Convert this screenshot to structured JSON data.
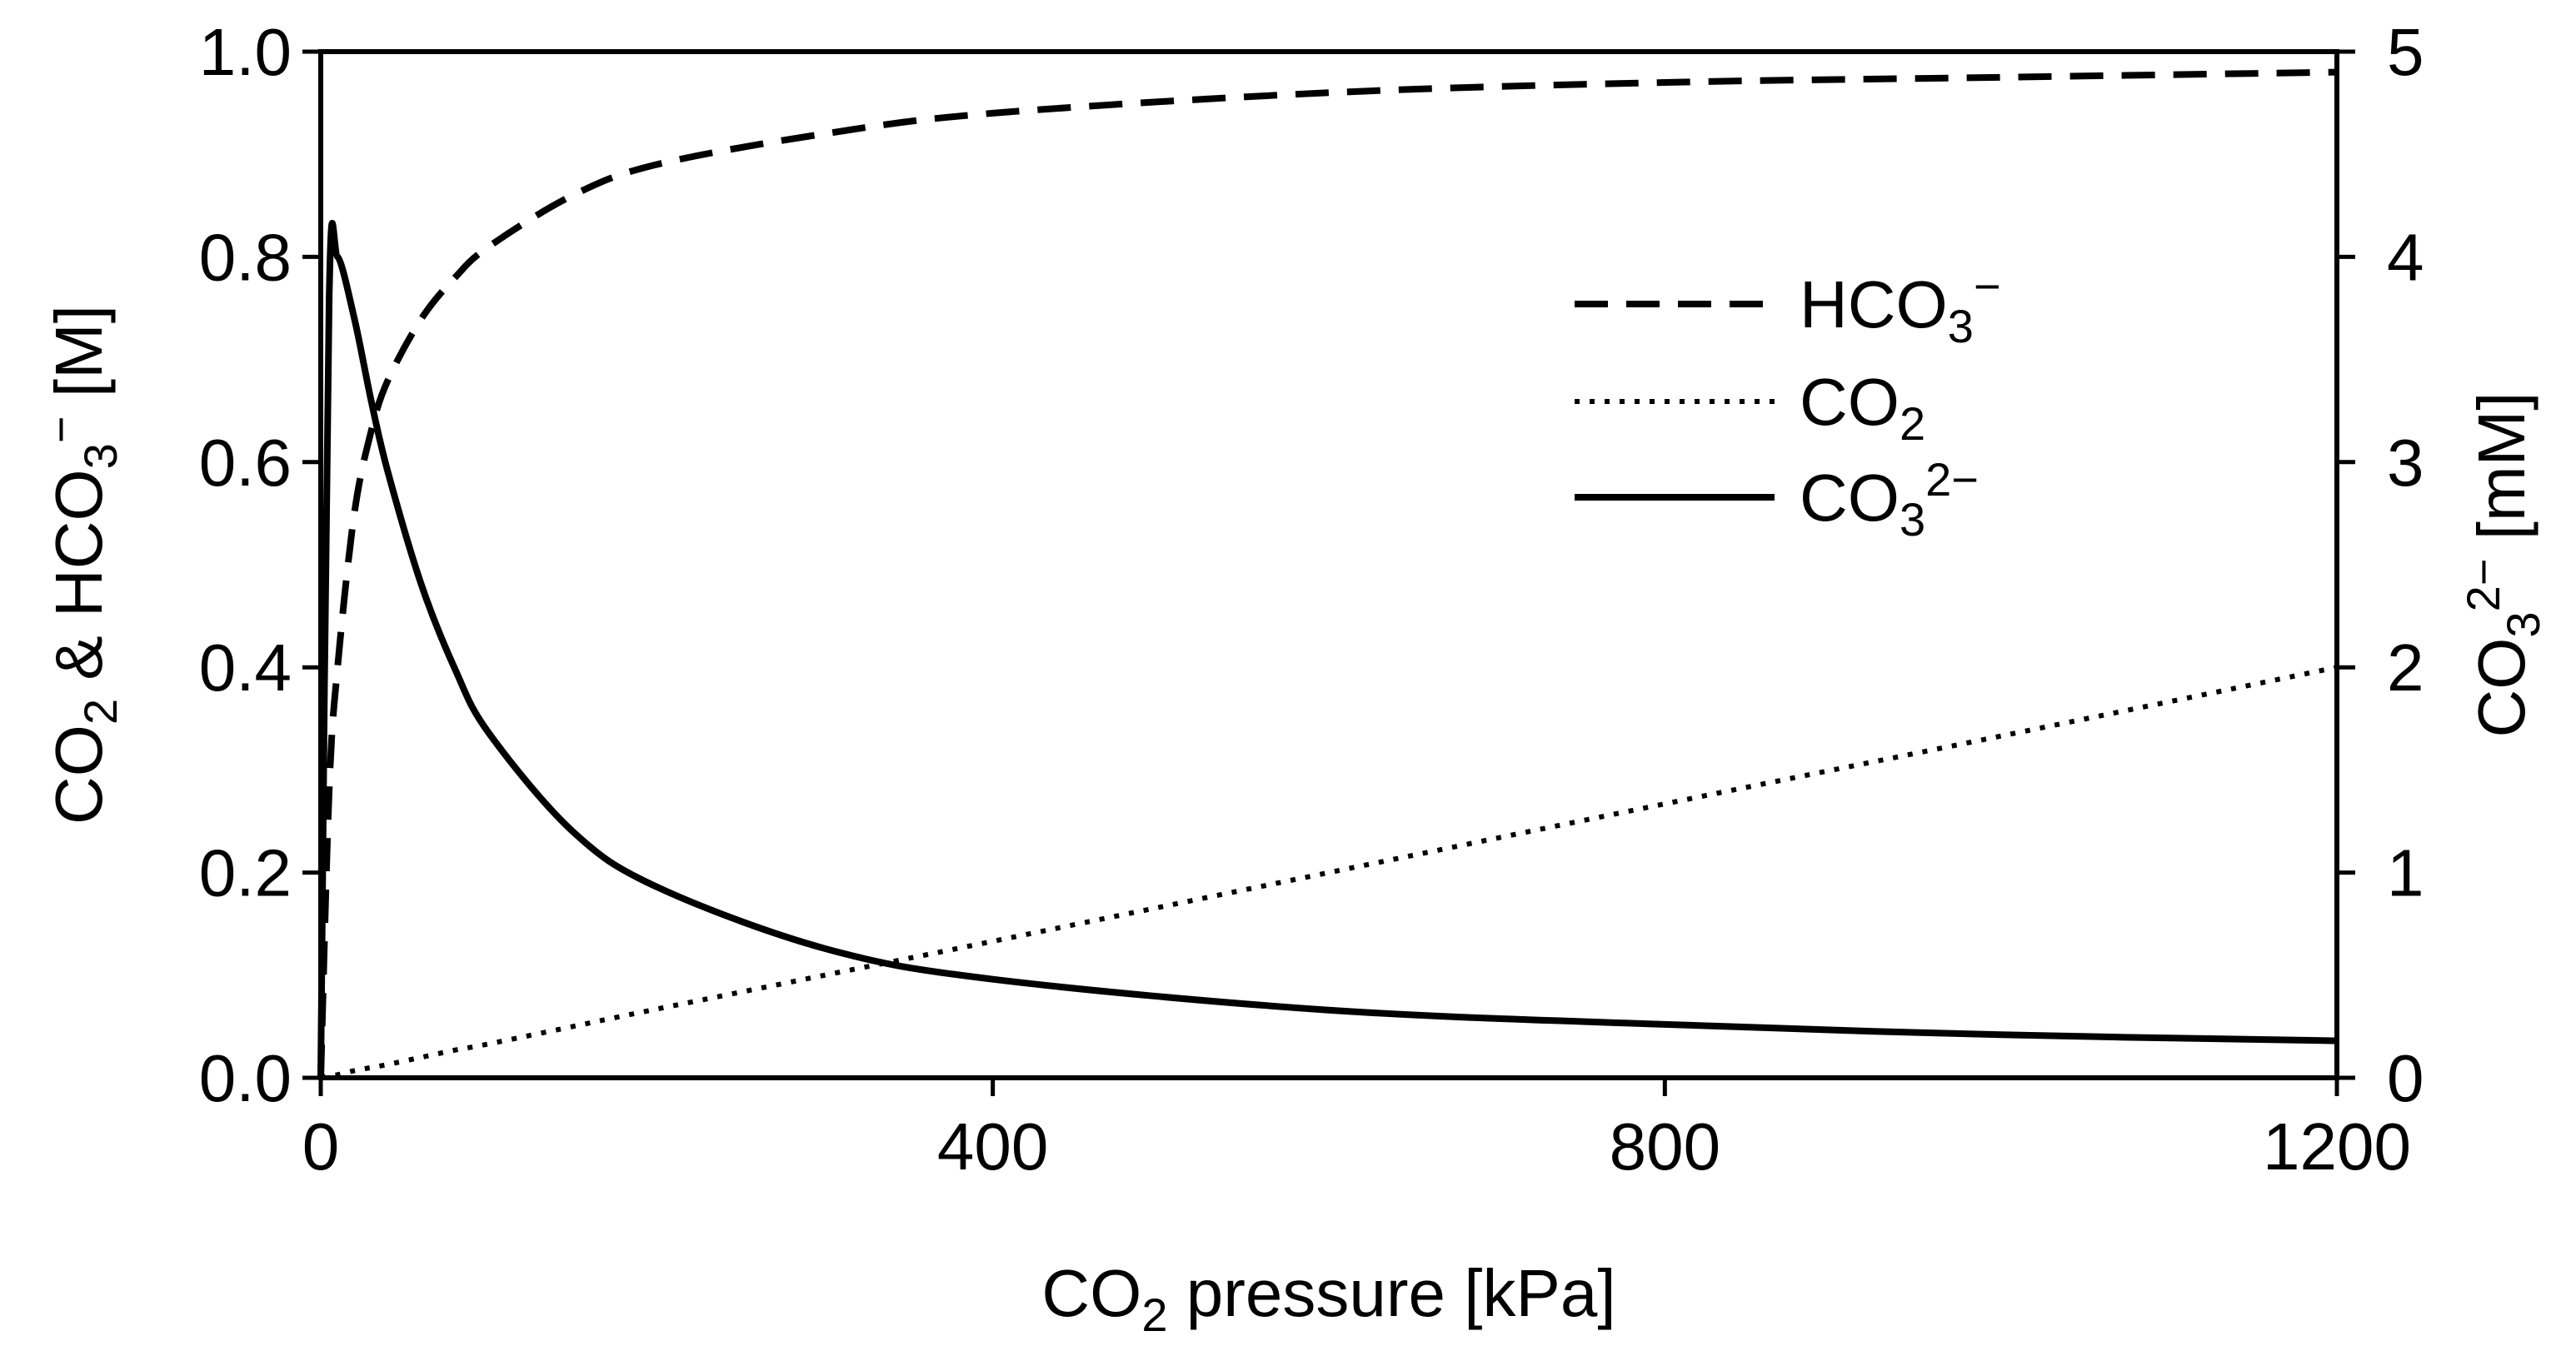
{
  "chart_data": {
    "type": "line",
    "x": [
      0,
      5,
      10,
      20,
      30,
      40,
      60,
      80,
      100,
      150,
      200,
      300,
      400,
      600,
      800,
      1000,
      1200
    ],
    "xlabel": {
      "main": "CO",
      "sub": "2",
      "rest": " pressure [kPa]"
    },
    "ylabel_left": {
      "p1": "CO",
      "sub1": "2",
      "p2": " & HCO",
      "sub2": "3",
      "sup2": "−",
      "p3": " [M]"
    },
    "ylabel_right": {
      "p1": "CO",
      "sub1": "3",
      "sup1": "2−",
      "p2": " [mM]"
    },
    "xlim": [
      0,
      1200
    ],
    "ylim_left": [
      0,
      1.0
    ],
    "ylim_right": [
      0,
      5
    ],
    "x_ticks": [
      "0",
      "400",
      "800",
      "1200"
    ],
    "y_left_ticks": [
      "0.0",
      "0.2",
      "0.4",
      "0.6",
      "0.8",
      "1.0"
    ],
    "y_right_ticks": [
      "0",
      "1",
      "2",
      "3",
      "4",
      "5"
    ],
    "series": [
      {
        "name": "HCO3−",
        "legend": {
          "main": "HCO",
          "sub": "3",
          "sup": "−"
        },
        "axis": "left",
        "style": "dashed",
        "values": [
          0.0,
          0.28,
          0.4,
          0.55,
          0.63,
          0.68,
          0.74,
          0.78,
          0.81,
          0.86,
          0.89,
          0.92,
          0.94,
          0.96,
          0.97,
          0.975,
          0.98
        ]
      },
      {
        "name": "CO2",
        "legend": {
          "main": "CO",
          "sub": "2",
          "sup": ""
        },
        "axis": "left",
        "style": "dotted",
        "values": [
          0.0,
          0.002,
          0.003,
          0.007,
          0.01,
          0.013,
          0.02,
          0.027,
          0.033,
          0.05,
          0.067,
          0.1,
          0.133,
          0.2,
          0.267,
          0.333,
          0.4
        ]
      },
      {
        "name": "CO32−",
        "legend": {
          "main": "CO",
          "sub": "3",
          "sup": "2−"
        },
        "axis": "right",
        "style": "solid",
        "values": [
          0.0,
          3.8,
          4.0,
          3.7,
          3.3,
          2.95,
          2.4,
          1.99,
          1.68,
          1.2,
          0.93,
          0.63,
          0.48,
          0.33,
          0.26,
          0.21,
          0.18
        ]
      }
    ]
  }
}
